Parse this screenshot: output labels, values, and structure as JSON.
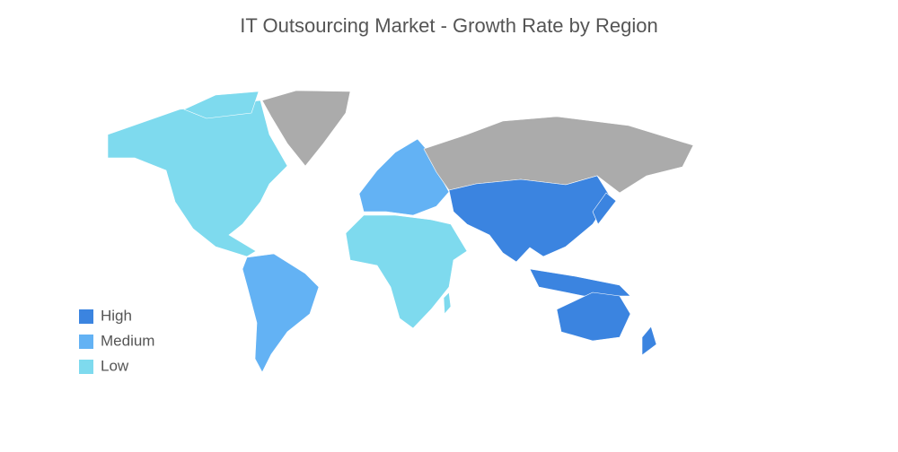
{
  "title": "IT Outsourcing Market - Growth Rate by Region",
  "legend": [
    {
      "label": "High",
      "color": "#3b84e0"
    },
    {
      "label": "Medium",
      "color": "#63b2f4"
    },
    {
      "label": "Low",
      "color": "#7edaee"
    }
  ],
  "no_data_color": "#ababab"
}
